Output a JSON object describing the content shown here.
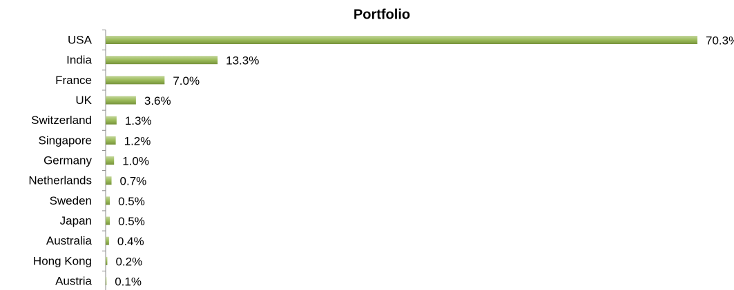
{
  "chart_data": {
    "type": "bar",
    "orientation": "horizontal",
    "title": "Portfolio",
    "categories": [
      "USA",
      "India",
      "France",
      "UK",
      "Switzerland",
      "Singapore",
      "Germany",
      "Netherlands",
      "Sweden",
      "Japan",
      "Australia",
      "Hong Kong",
      "Austria"
    ],
    "values": [
      70.3,
      13.3,
      7.0,
      3.6,
      1.3,
      1.2,
      1.0,
      0.7,
      0.5,
      0.5,
      0.4,
      0.2,
      0.1
    ],
    "value_labels": [
      "70.3%",
      "13.3%",
      "7.0%",
      "3.6%",
      "1.3%",
      "1.2%",
      "1.0%",
      "0.7%",
      "0.5%",
      "0.5%",
      "0.4%",
      "0.2%",
      "0.1%"
    ],
    "color": "#9bbb59"
  }
}
